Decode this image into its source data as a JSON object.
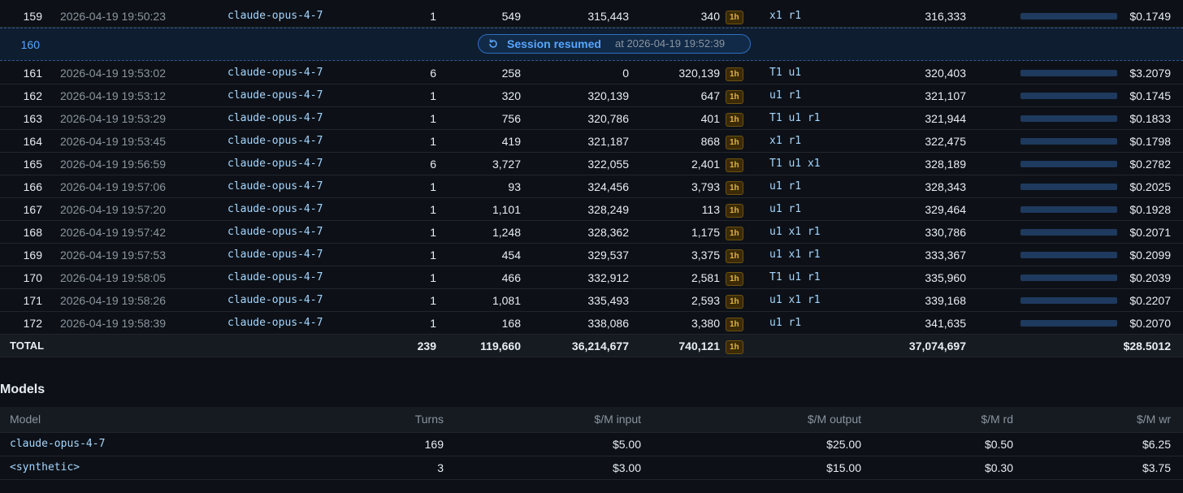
{
  "table": {
    "rows": [
      {
        "index": "159",
        "time": "2026-04-19 19:50:23",
        "model": "claude-opus-4-7",
        "turns": "1",
        "input": "549",
        "cache_read": "315,443",
        "cache_write": "340",
        "badge": "1h",
        "flags": "x1 r1",
        "total": "316,333",
        "cost": "$0.1749"
      },
      {
        "index": "160",
        "label": "Session resumed",
        "detail": "at 2026-04-19 19:52:39"
      },
      {
        "index": "161",
        "time": "2026-04-19 19:53:02",
        "model": "claude-opus-4-7",
        "turns": "6",
        "input": "258",
        "cache_read": "0",
        "cache_write": "320,139",
        "badge": "1h",
        "flags": "T1 u1",
        "total": "320,403",
        "cost": "$3.2079"
      },
      {
        "index": "162",
        "time": "2026-04-19 19:53:12",
        "model": "claude-opus-4-7",
        "turns": "1",
        "input": "320",
        "cache_read": "320,139",
        "cache_write": "647",
        "badge": "1h",
        "flags": "u1 r1",
        "total": "321,107",
        "cost": "$0.1745"
      },
      {
        "index": "163",
        "time": "2026-04-19 19:53:29",
        "model": "claude-opus-4-7",
        "turns": "1",
        "input": "756",
        "cache_read": "320,786",
        "cache_write": "401",
        "badge": "1h",
        "flags": "T1 u1 r1",
        "total": "321,944",
        "cost": "$0.1833"
      },
      {
        "index": "164",
        "time": "2026-04-19 19:53:45",
        "model": "claude-opus-4-7",
        "turns": "1",
        "input": "419",
        "cache_read": "321,187",
        "cache_write": "868",
        "badge": "1h",
        "flags": "x1 r1",
        "total": "322,475",
        "cost": "$0.1798"
      },
      {
        "index": "165",
        "time": "2026-04-19 19:56:59",
        "model": "claude-opus-4-7",
        "turns": "6",
        "input": "3,727",
        "cache_read": "322,055",
        "cache_write": "2,401",
        "badge": "1h",
        "flags": "T1 u1 x1",
        "total": "328,189",
        "cost": "$0.2782"
      },
      {
        "index": "166",
        "time": "2026-04-19 19:57:06",
        "model": "claude-opus-4-7",
        "turns": "1",
        "input": "93",
        "cache_read": "324,456",
        "cache_write": "3,793",
        "badge": "1h",
        "flags": "u1 r1",
        "total": "328,343",
        "cost": "$0.2025"
      },
      {
        "index": "167",
        "time": "2026-04-19 19:57:20",
        "model": "claude-opus-4-7",
        "turns": "1",
        "input": "1,101",
        "cache_read": "328,249",
        "cache_write": "113",
        "badge": "1h",
        "flags": "u1 r1",
        "total": "329,464",
        "cost": "$0.1928"
      },
      {
        "index": "168",
        "time": "2026-04-19 19:57:42",
        "model": "claude-opus-4-7",
        "turns": "1",
        "input": "1,248",
        "cache_read": "328,362",
        "cache_write": "1,175",
        "badge": "1h",
        "flags": "u1 x1 r1",
        "total": "330,786",
        "cost": "$0.2071"
      },
      {
        "index": "169",
        "time": "2026-04-19 19:57:53",
        "model": "claude-opus-4-7",
        "turns": "1",
        "input": "454",
        "cache_read": "329,537",
        "cache_write": "3,375",
        "badge": "1h",
        "flags": "u1 x1 r1",
        "total": "333,367",
        "cost": "$0.2099"
      },
      {
        "index": "170",
        "time": "2026-04-19 19:58:05",
        "model": "claude-opus-4-7",
        "turns": "1",
        "input": "466",
        "cache_read": "332,912",
        "cache_write": "2,581",
        "badge": "1h",
        "flags": "T1 u1 r1",
        "total": "335,960",
        "cost": "$0.2039"
      },
      {
        "index": "171",
        "time": "2026-04-19 19:58:26",
        "model": "claude-opus-4-7",
        "turns": "1",
        "input": "1,081",
        "cache_read": "335,493",
        "cache_write": "2,593",
        "badge": "1h",
        "flags": "u1 x1 r1",
        "total": "339,168",
        "cost": "$0.2207"
      },
      {
        "index": "172",
        "time": "2026-04-19 19:58:39",
        "model": "claude-opus-4-7",
        "turns": "1",
        "input": "168",
        "cache_read": "338,086",
        "cache_write": "3,380",
        "badge": "1h",
        "flags": "u1 r1",
        "total": "341,635",
        "cost": "$0.2070"
      }
    ],
    "total": {
      "label": "TOTAL",
      "turns": "239",
      "input": "119,660",
      "cache_read": "36,214,677",
      "cache_write": "740,121",
      "badge": "1h",
      "total": "37,074,697",
      "cost": "$28.5012"
    }
  },
  "models": {
    "title": "Models",
    "header": [
      "Model",
      "Turns",
      "$/M input",
      "$/M output",
      "$/M rd",
      "$/M wr"
    ],
    "rows": [
      [
        "claude-opus-4-7",
        "169",
        "$5.00",
        "$25.00",
        "$0.50",
        "$6.25"
      ],
      [
        "<synthetic>",
        "3",
        "$3.00",
        "$15.00",
        "$0.30",
        "$3.75"
      ]
    ]
  }
}
